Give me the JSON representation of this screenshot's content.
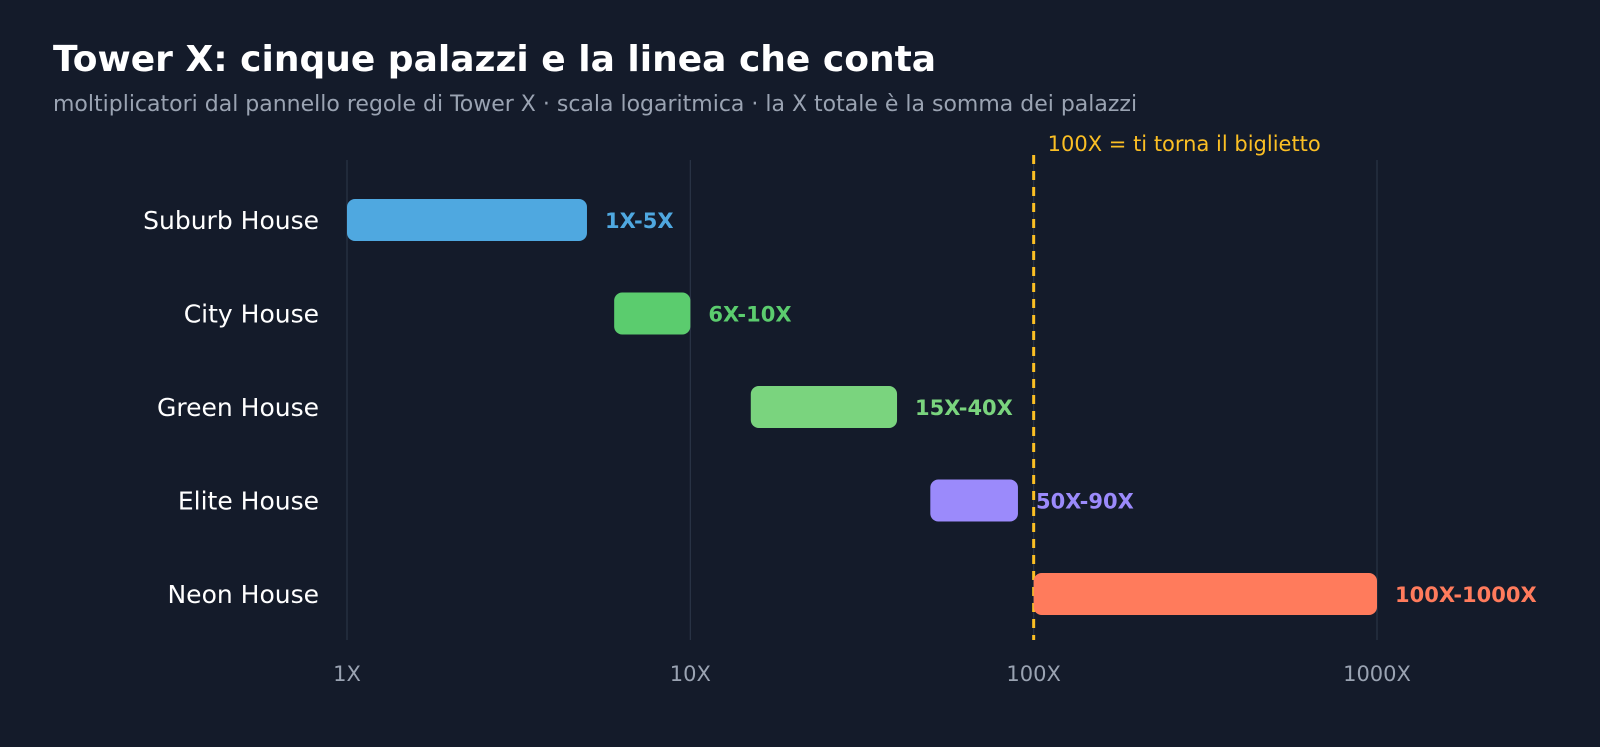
{
  "chart_data": {
    "type": "bar",
    "orientation": "horizontal",
    "style": "range",
    "title": "Tower X: cinque palazzi e la linea che conta",
    "subtitle": "moltiplicatori dal pannello regole di Tower X · scala logaritmica · la X totale è la somma dei palazzi",
    "xscale": "log",
    "xlim": [
      1,
      1000
    ],
    "grid": true,
    "ticks": [
      {
        "value": 1,
        "label": "1X"
      },
      {
        "value": 10,
        "label": "10X"
      },
      {
        "value": 100,
        "label": "100X"
      },
      {
        "value": 1000,
        "label": "1000X"
      }
    ],
    "categories": [
      "Suburb House",
      "City House",
      "Green House",
      "Elite House",
      "Neon House"
    ],
    "bars": [
      {
        "category": "Suburb House",
        "low": 1,
        "high": 5,
        "label": "1X-5X",
        "color": "#4fa8e0"
      },
      {
        "category": "City House",
        "low": 6,
        "high": 10,
        "label": "6X-10X",
        "color": "#5bcc6e"
      },
      {
        "category": "Green House",
        "low": 15,
        "high": 40,
        "label": "15X-40X",
        "color": "#7ad47e"
      },
      {
        "category": "Elite House",
        "low": 50,
        "high": 90,
        "label": "50X-90X",
        "color": "#9b8afb"
      },
      {
        "category": "Neon House",
        "low": 100,
        "high": 1000,
        "label": "100X-1000X",
        "color": "#ff7b5c"
      }
    ],
    "reference_line": {
      "value": 100,
      "label": "100X = ti torna il biglietto",
      "color": "#fbbf24",
      "style": "dashed"
    }
  },
  "colors": {
    "background": "#141b2a",
    "grid": "#2a3446",
    "muted_text": "#9aa3b2",
    "text": "#ffffff"
  }
}
